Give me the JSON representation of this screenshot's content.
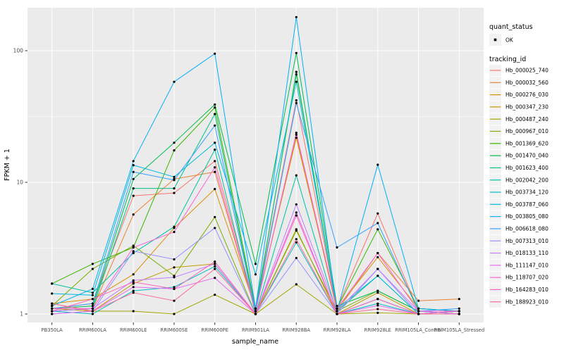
{
  "figure": {
    "y_axis": {
      "title": "FPKM + 1",
      "tick_labels": [
        "100",
        "10",
        "1"
      ],
      "tick_values": [
        100,
        10,
        1
      ],
      "minor_values": [
        3.1623,
        31.623
      ]
    },
    "x_axis": {
      "title": "sample_name"
    },
    "legend": {
      "quant_status_title": "quant_status",
      "quant_status_items": [
        {
          "label": "OK",
          "symbol": "point"
        }
      ],
      "tracking_id_title": "tracking_id"
    },
    "colors": {
      "panel_bg": "#EBEBEB",
      "grid": "#FFFFFF",
      "tick_label": "#4D4D4D",
      "axis_title": "#000000",
      "tick_mark": "#333333",
      "point": "#000000",
      "legend_key_bg": "#F2F2F2"
    }
  },
  "chart_data": {
    "type": "line",
    "title": "",
    "xlabel": "sample_name",
    "ylabel": "FPKM + 1",
    "y_scale": "log10",
    "ylim": [
      0.85,
      215
    ],
    "grid": true,
    "legend_position": "right",
    "point_shape": "black dot on every vertex",
    "categories": [
      "PB350LA",
      "RRIM600LA",
      "RRIM600LE",
      "RRIM600SE",
      "RRIM600PE",
      "RRIM901LA",
      "RRIM928BA",
      "RRIM928LA",
      "RRIM928LE",
      "RRIM105LA_Control",
      "RRIM105LA_Stressed"
    ],
    "series": [
      {
        "name": "Hb_000025_740",
        "color": "#F8766D",
        "values": [
          1.1,
          1.2,
          7.9,
          8.3,
          14.5,
          1.1,
          42,
          1.1,
          5.8,
          1.05,
          1.05
        ]
      },
      {
        "name": "Hb_000032_560",
        "color": "#EA8331",
        "values": [
          1.05,
          1.1,
          5.7,
          10.6,
          12.0,
          1.05,
          23,
          1.05,
          2.9,
          1.26,
          1.3
        ]
      },
      {
        "name": "Hb_000276_030",
        "color": "#D89000",
        "values": [
          1.2,
          1.3,
          2.0,
          4.5,
          8.9,
          1.1,
          21.8,
          1.1,
          2.7,
          1.1,
          1.05
        ]
      },
      {
        "name": "Hb_000347_230",
        "color": "#C09B00",
        "values": [
          1.1,
          1.05,
          1.7,
          2.26,
          2.4,
          1.0,
          4.4,
          1.0,
          1.45,
          1.0,
          1.0
        ]
      },
      {
        "name": "Hb_000487_240",
        "color": "#A3A500",
        "values": [
          1.2,
          1.05,
          1.05,
          1.0,
          1.4,
          1.0,
          1.68,
          1.0,
          1.02,
          1.0,
          1.0
        ]
      },
      {
        "name": "Hb_000967_010",
        "color": "#7CAE00",
        "values": [
          1.15,
          2.2,
          3.3,
          1.95,
          5.45,
          1.0,
          4.3,
          1.05,
          1.5,
          1.05,
          1.0
        ]
      },
      {
        "name": "Hb_001369_620",
        "color": "#39B600",
        "values": [
          1.7,
          2.4,
          3.2,
          17.5,
          37,
          1.1,
          66,
          1.1,
          4.4,
          1.1,
          1.05
        ]
      },
      {
        "name": "Hb_001470_040",
        "color": "#00BB4E",
        "values": [
          1.1,
          1.15,
          10.6,
          20,
          39,
          2.4,
          96,
          1.15,
          1.5,
          1.05,
          1.0
        ]
      },
      {
        "name": "Hb_001623_400",
        "color": "#00C087",
        "values": [
          1.05,
          1.1,
          9.0,
          9.0,
          33,
          1.05,
          69,
          1.05,
          1.95,
          1.0,
          1.05
        ]
      },
      {
        "name": "Hb_002042_200",
        "color": "#00C1A3",
        "values": [
          1.7,
          1.45,
          2.9,
          4.6,
          17.7,
          1.0,
          11.3,
          1.0,
          1.3,
          1.0,
          1.0
        ]
      },
      {
        "name": "Hb_003734_120",
        "color": "#00BFC4",
        "values": [
          1.05,
          1.0,
          1.5,
          1.6,
          2.3,
          1.0,
          3.5,
          1.0,
          1.2,
          1.0,
          1.0
        ]
      },
      {
        "name": "Hb_003787_060",
        "color": "#00BAE0",
        "values": [
          1.43,
          1.39,
          13.5,
          11.0,
          20,
          2.0,
          58,
          1.1,
          1.95,
          1.0,
          1.05
        ]
      },
      {
        "name": "Hb_003805_080",
        "color": "#00B0F6",
        "values": [
          1.15,
          1.55,
          14.5,
          58,
          95,
          1.1,
          180,
          1.05,
          13.6,
          1.1,
          1.05
        ]
      },
      {
        "name": "Hb_006618_080",
        "color": "#35A2FF",
        "values": [
          1.1,
          1.2,
          12.0,
          10.4,
          27,
          1.05,
          40,
          3.2,
          4.9,
          1.05,
          1.1
        ]
      },
      {
        "name": "Hb_007313_010",
        "color": "#9590FF",
        "values": [
          1.0,
          1.05,
          3.0,
          2.6,
          4.5,
          1.0,
          2.66,
          1.0,
          2.2,
          1.0,
          1.0
        ]
      },
      {
        "name": "Hb_018133_110",
        "color": "#C77CFF",
        "values": [
          1.05,
          1.1,
          1.8,
          1.9,
          2.4,
          1.0,
          6.8,
          1.05,
          2.2,
          1.05,
          1.0
        ]
      },
      {
        "name": "Hb_111147_010",
        "color": "#E76BF3",
        "values": [
          1.0,
          1.05,
          1.6,
          1.55,
          1.88,
          1.0,
          5.9,
          1.0,
          1.16,
          1.0,
          1.0
        ]
      },
      {
        "name": "Hb_118707_020",
        "color": "#FA62DB",
        "values": [
          1.1,
          1.1,
          3.2,
          4.2,
          13.0,
          1.05,
          23.8,
          1.1,
          2.9,
          1.05,
          1.05
        ]
      },
      {
        "name": "Hb_164283_010",
        "color": "#FF62BC",
        "values": [
          1.05,
          1.3,
          1.75,
          1.55,
          2.5,
          1.0,
          5.6,
          1.0,
          1.3,
          1.0,
          1.05
        ]
      },
      {
        "name": "Hb_188923_010",
        "color": "#FF6A98",
        "values": [
          1.2,
          1.05,
          1.45,
          1.26,
          2.2,
          1.0,
          3.7,
          1.0,
          1.09,
          1.0,
          1.0
        ]
      }
    ]
  }
}
